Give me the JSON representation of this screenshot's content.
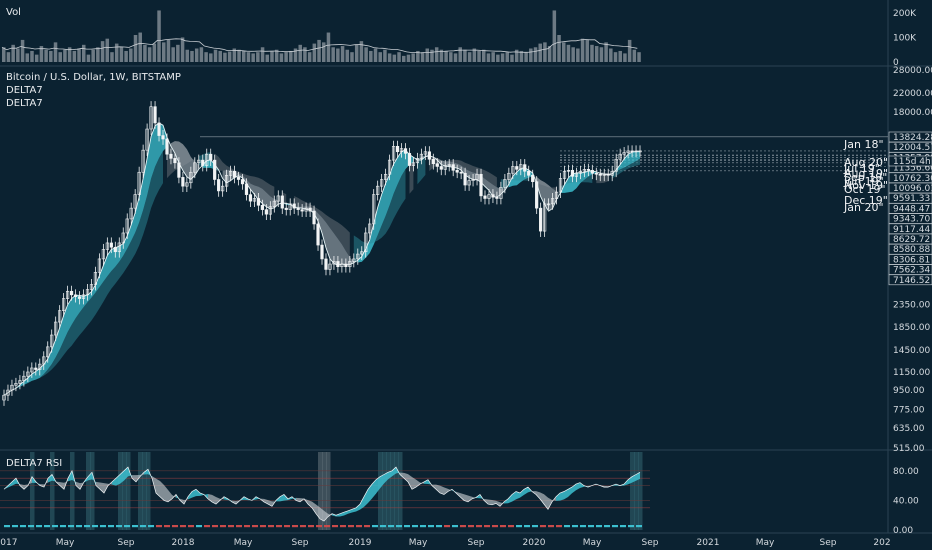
{
  "colors": {
    "background": "#0b2231",
    "accent": "#3cc0d0",
    "accent_dark": "#2a7f8e",
    "ribbon_gray": "#8c969e",
    "candle": "#f2f4f5",
    "grid": "#1c3646",
    "rsi_red": "#8a2a2a"
  },
  "panes": {
    "volume": {
      "title": "Vol"
    },
    "price": {
      "title": "Bitcoin / U.S. Dollar, 1W, BITSTAMP",
      "indicators": [
        "DELTA7",
        "DELTA7"
      ]
    },
    "rsi": {
      "title": "DELTA7 RSI"
    }
  },
  "chart_data": [
    {
      "type": "bar",
      "pane": "volume",
      "y_axis_labels": [
        "200K",
        "100K",
        "0"
      ],
      "y_ticks": [
        200000,
        100000,
        0
      ],
      "ylim": [
        0,
        220000
      ],
      "values": [
        60000,
        40000,
        70000,
        55000,
        90000,
        35000,
        45000,
        30000,
        65000,
        50000,
        45000,
        80000,
        40000,
        50000,
        60000,
        45000,
        55000,
        70000,
        30000,
        50000,
        60000,
        85000,
        95000,
        40000,
        75000,
        60000,
        45000,
        55000,
        110000,
        120000,
        70000,
        60000,
        75000,
        210000,
        80000,
        90000,
        60000,
        70000,
        100000,
        50000,
        45000,
        55000,
        60000,
        40000,
        35000,
        50000,
        45000,
        38000,
        42000,
        55000,
        50000,
        45000,
        40000,
        35000,
        40000,
        60000,
        30000,
        45000,
        50000,
        35000,
        40000,
        45000,
        55000,
        70000,
        60000,
        40000,
        75000,
        90000,
        80000,
        120000,
        60000,
        55000,
        65000,
        50000,
        40000,
        70000,
        85000,
        60000,
        45000,
        55000,
        40000,
        50000,
        35000,
        30000,
        40000,
        25000,
        30000,
        35000,
        45000,
        40000,
        55000,
        50000,
        60000,
        50000,
        45000,
        40000,
        35000,
        60000,
        50000,
        40000,
        55000,
        45000,
        50000,
        35000,
        40000,
        30000,
        35000,
        40000,
        30000,
        50000,
        45000,
        40000,
        55000,
        60000,
        75000,
        80000,
        65000,
        210000,
        110000,
        80000,
        70000,
        60000,
        55000,
        95000,
        90000,
        70000,
        65000,
        60000,
        80000,
        55000,
        40000,
        45000,
        35000,
        90000,
        50000,
        40000
      ]
    },
    {
      "type": "candlestick",
      "pane": "price",
      "scale": "log",
      "ylim": [
        515,
        28000
      ],
      "y_axis_labels": [
        "28000.00",
        "22000.00",
        "18000.00",
        "2350.00",
        "1850.00",
        "1450.00",
        "1150.00",
        "950.00",
        "775.00",
        "635.00",
        "515.00"
      ],
      "y_ticks": [
        28000,
        22000,
        18000,
        2350,
        1850,
        1450,
        1150,
        950,
        775,
        635,
        515
      ],
      "price_labels": [
        "13824.28",
        "12004.57",
        "11357.98",
        "11356.60",
        "10762.30",
        "10096.01",
        "9591.33",
        "9448.47",
        "9343.70",
        "9117.44",
        "8629.72",
        "8580.88",
        "8306.81",
        "7562.34",
        "7146.52"
      ],
      "price_values": [
        13824.28,
        12004.57,
        11357.98,
        11356.6,
        10762.3,
        10096.01,
        9591.33,
        9448.47,
        9343.7,
        9117.44,
        8629.72,
        8580.88,
        8306.81,
        7562.34,
        7146.52
      ],
      "current_price_label": "11",
      "countdown_label": "5d 4h",
      "level_labels": [
        "Jan 18\"",
        "Aug 20\"",
        "Jul 19\"",
        "Aug 19\"",
        "Sep 19\"",
        "Jun 19\"",
        "Nov 19\"",
        "Oct 19\"",
        "Dec 19\"",
        "Jan 20\""
      ],
      "level_values": [
        13824.28,
        11900,
        11400,
        11357.98,
        11100,
        10900,
        10762.3,
        10500,
        10096.01,
        9650
      ],
      "close": [
        900,
        950,
        1000,
        1020,
        1050,
        1100,
        1150,
        1200,
        1180,
        1250,
        1350,
        1500,
        1700,
        1950,
        2200,
        2500,
        2700,
        2600,
        2550,
        2500,
        2600,
        2750,
        2900,
        3300,
        3800,
        4200,
        4500,
        4300,
        4100,
        4500,
        5000,
        5800,
        6500,
        7500,
        9500,
        12000,
        15000,
        19000,
        16000,
        14000,
        13500,
        11500,
        11000,
        10500,
        9000,
        8200,
        8500,
        9500,
        10500,
        10800,
        10200,
        11500,
        10800,
        8800,
        7800,
        8200,
        9200,
        9600,
        9000,
        8800,
        8400,
        7500,
        7000,
        7200,
        6700,
        6400,
        6100,
        6600,
        7000,
        7400,
        6500,
        6400,
        6800,
        6500,
        6400,
        6300,
        6500,
        6300,
        5500,
        4400,
        3800,
        3400,
        3600,
        3700,
        3500,
        3600,
        3500,
        3700,
        3800,
        4000,
        4100,
        5000,
        5500,
        7500,
        8200,
        8800,
        9300,
        10800,
        12500,
        11800,
        12200,
        11600,
        10200,
        10500,
        11000,
        11500,
        11800,
        10900,
        10400,
        10100,
        9800,
        10200,
        10300,
        9700,
        9500,
        9400,
        8300,
        8700,
        8800,
        9300,
        7400,
        7200,
        7500,
        7300,
        7200,
        8100,
        8800,
        9400,
        10100,
        9800,
        10300,
        9600,
        9200,
        8600,
        6500,
        5100,
        6800,
        6800,
        7200,
        7700,
        8900,
        9600,
        9700,
        9100,
        9400,
        9600,
        9800,
        9700,
        9400,
        9300,
        9200,
        9300,
        9200,
        9600,
        10900,
        11500,
        11700,
        11900,
        11850,
        11900,
        11900
      ]
    },
    {
      "type": "area",
      "pane": "rsi",
      "y_axis_labels": [
        "80.00",
        "40.00",
        "0.00"
      ],
      "y_ticks": [
        80,
        40,
        0
      ],
      "ylim": [
        0,
        100
      ],
      "values": [
        55,
        60,
        65,
        70,
        60,
        55,
        60,
        72,
        65,
        60,
        58,
        70,
        75,
        65,
        60,
        55,
        70,
        80,
        60,
        55,
        65,
        72,
        78,
        60,
        55,
        50,
        60,
        65,
        70,
        75,
        80,
        85,
        70,
        65,
        72,
        78,
        82,
        70,
        50,
        45,
        40,
        38,
        42,
        48,
        40,
        35,
        45,
        52,
        55,
        50,
        48,
        42,
        38,
        35,
        40,
        45,
        42,
        38,
        35,
        40,
        45,
        42,
        40,
        45,
        42,
        38,
        35,
        32,
        40,
        45,
        48,
        42,
        45,
        40,
        38,
        42,
        35,
        30,
        22,
        15,
        12,
        18,
        22,
        20,
        22,
        24,
        26,
        28,
        30,
        35,
        45,
        55,
        62,
        68,
        72,
        75,
        78,
        80,
        85,
        75,
        70,
        65,
        55,
        58,
        62,
        65,
        68,
        60,
        55,
        50,
        48,
        52,
        55,
        50,
        45,
        40,
        38,
        42,
        44,
        48,
        40,
        35,
        34,
        36,
        32,
        38,
        42,
        48,
        52,
        50,
        55,
        58,
        52,
        48,
        42,
        35,
        28,
        38,
        45,
        50,
        52,
        55,
        58,
        62,
        64,
        60,
        58,
        60,
        62,
        60,
        58,
        58,
        60,
        62,
        60,
        62,
        68,
        72,
        75,
        78
      ]
    }
  ],
  "x_axis": {
    "labels": [
      "2017",
      "May",
      "Sep",
      "2018",
      "May",
      "Sep",
      "2019",
      "May",
      "Sep",
      "2020",
      "May",
      "Sep",
      "2021",
      "May",
      "Sep",
      "202"
    ]
  }
}
